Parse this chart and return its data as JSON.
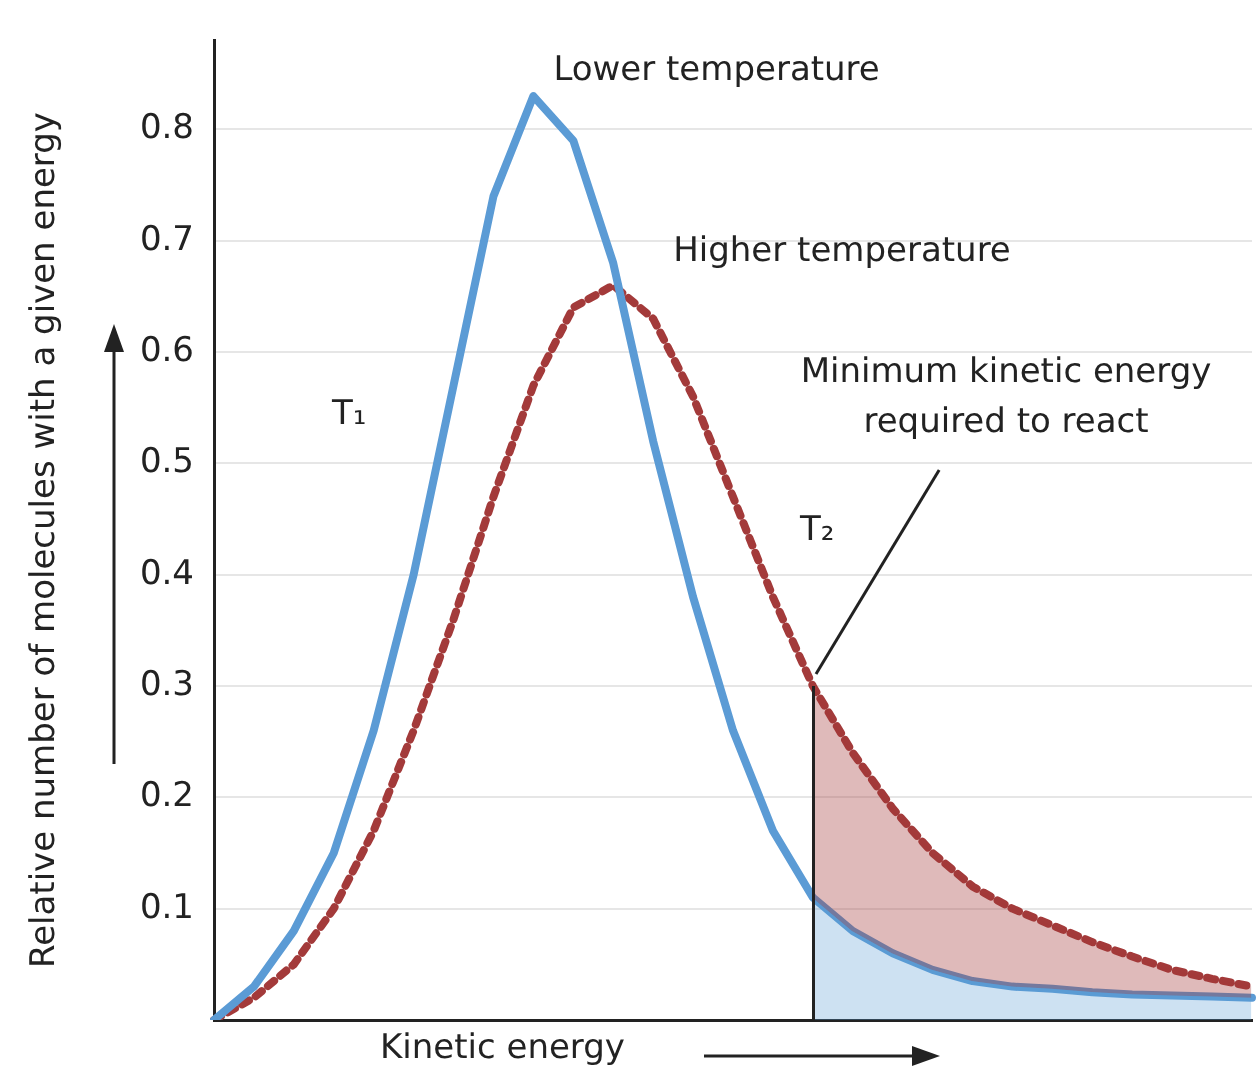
{
  "chart_data": {
    "type": "line",
    "ylabel": "Relative number of molecules with a given energy",
    "xlabel": "Kinetic energy",
    "categories": [
      null,
      null,
      null,
      null,
      null,
      null,
      null,
      null,
      null,
      null,
      null,
      null,
      null,
      null,
      null,
      null,
      null,
      null,
      null,
      null,
      null,
      null,
      null,
      null,
      null,
      null,
      null
    ],
    "series": [
      {
        "name": "Lower temperature",
        "color": "#5b9bd5",
        "line_style": "solid",
        "values": [
          0,
          0.03,
          0.08,
          0.15,
          0.26,
          0.4,
          0.57,
          0.74,
          0.83,
          0.79,
          0.68,
          0.52,
          0.38,
          0.26,
          0.17,
          0.11,
          0.08,
          0.06,
          0.045,
          0.035,
          0.03,
          0.028,
          0.025,
          0.023,
          0.022,
          0.021,
          0.02
        ]
      },
      {
        "name": "Higher temperature",
        "color": "#a33a3a",
        "line_style": "dotted",
        "values": [
          0,
          0.02,
          0.05,
          0.1,
          0.17,
          0.26,
          0.36,
          0.47,
          0.57,
          0.64,
          0.66,
          0.63,
          0.56,
          0.47,
          0.38,
          0.3,
          0.24,
          0.19,
          0.15,
          0.12,
          0.1,
          0.085,
          0.07,
          0.057,
          0.045,
          0.037,
          0.03
        ]
      }
    ],
    "ylim": [
      0,
      0.88
    ],
    "yticks": [
      0.1,
      0.2,
      0.3,
      0.4,
      0.5,
      0.6,
      0.7,
      0.8
    ],
    "tick_labels": "y",
    "grid": "y",
    "legend": false,
    "marker": "none",
    "annotations": [
      "T₁",
      "T₂",
      "Minimum kinetic energy required to react"
    ]
  }
}
